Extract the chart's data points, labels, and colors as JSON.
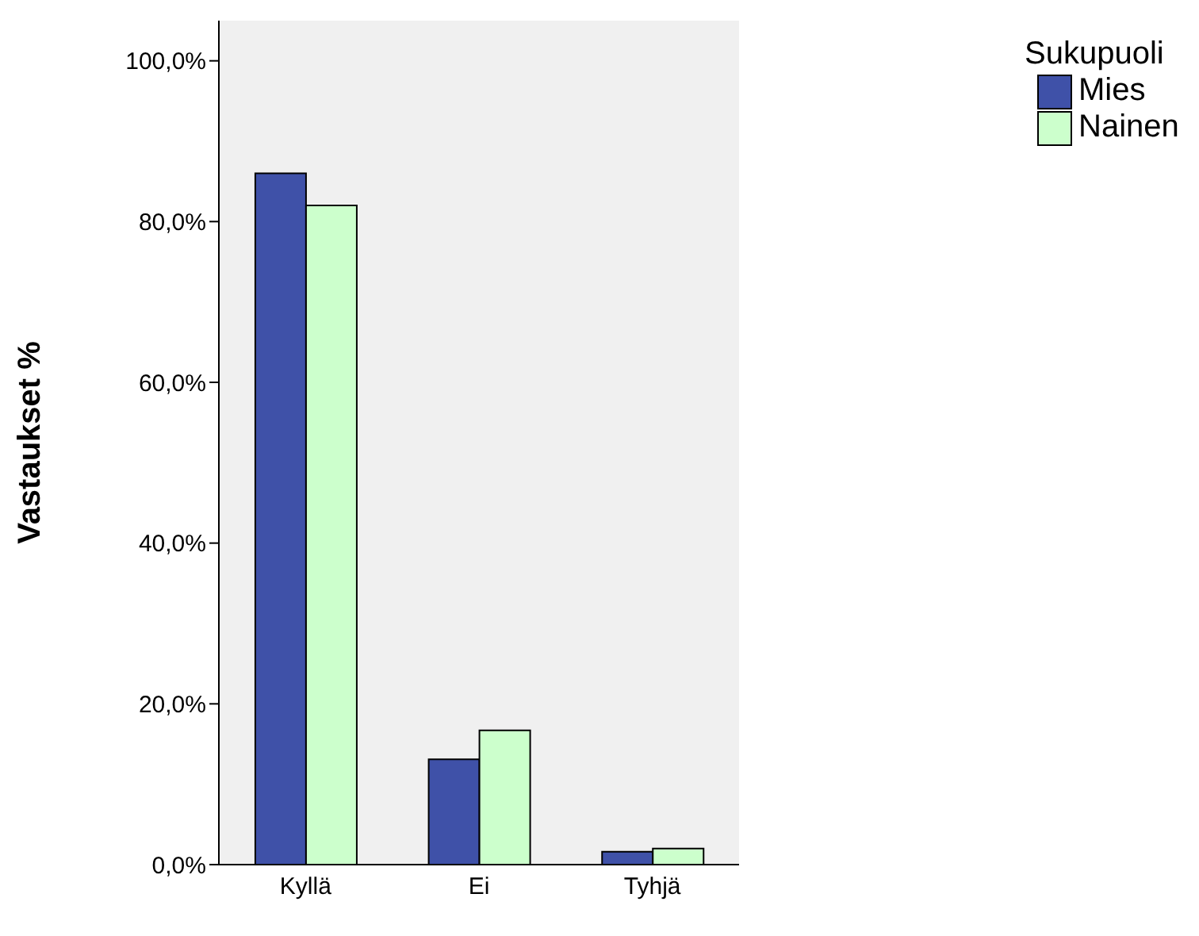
{
  "chart_data": {
    "type": "bar",
    "ylabel": "Vastaukset %",
    "legend_title": "Sukupuoli",
    "categories": [
      "Kyllä",
      "Ei",
      "Tyhjä"
    ],
    "series": [
      {
        "name": "Mies",
        "color": "#3f51a8",
        "values": [
          86,
          13.1,
          1.6
        ]
      },
      {
        "name": "Nainen",
        "color": "#ccffcc",
        "values": [
          82,
          16.7,
          2.0
        ]
      }
    ],
    "ylim": [
      0,
      105
    ],
    "yticks": [
      {
        "value": 0,
        "label": "0,0%"
      },
      {
        "value": 20,
        "label": "20,0%"
      },
      {
        "value": 40,
        "label": "40,0%"
      },
      {
        "value": 60,
        "label": "60,0%"
      },
      {
        "value": 80,
        "label": "80,0%"
      },
      {
        "value": 100,
        "label": "100,0%"
      }
    ],
    "grid": false,
    "legend": "top right"
  }
}
